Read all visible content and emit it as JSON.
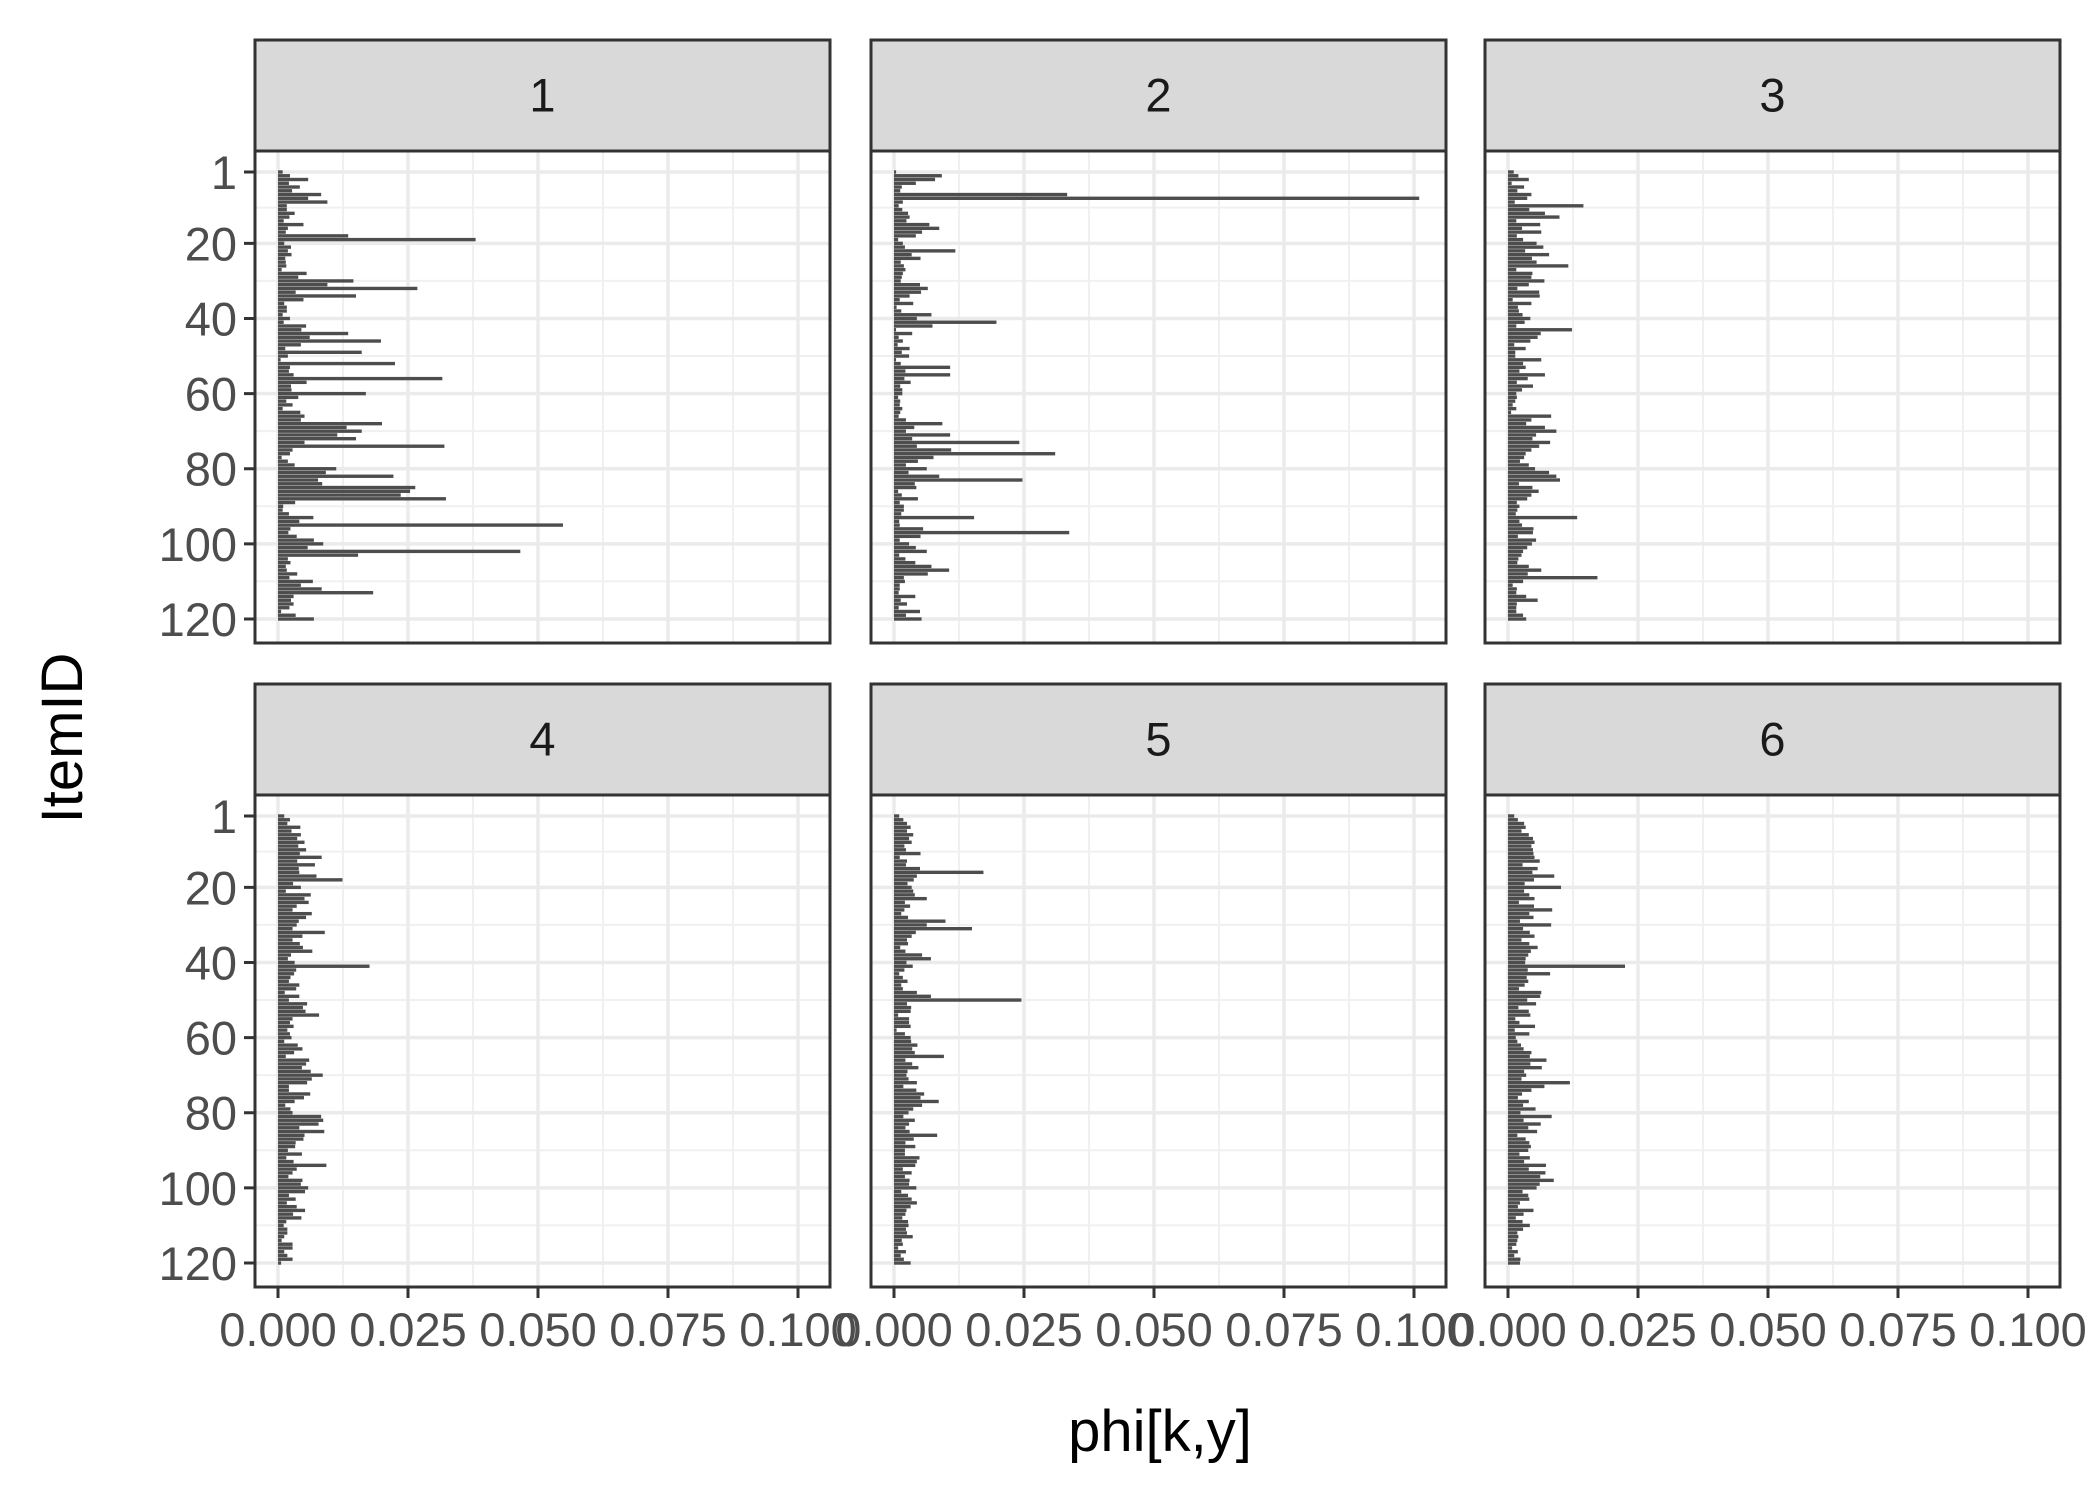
{
  "chart_data": {
    "type": "bar",
    "orientation": "horizontal",
    "facet_grid": "2 rows x 3 columns",
    "xlabel": "phi[k,y]",
    "ylabel": "ItemID",
    "xlim": [
      0,
      0.1
    ],
    "ylim": [
      1,
      120
    ],
    "x_ticks": [
      "0.000",
      "0.025",
      "0.050",
      "0.075",
      "0.100"
    ],
    "x_tick_values": [
      0,
      0.025,
      0.05,
      0.075,
      0.1
    ],
    "y_ticks": [
      "1",
      "20",
      "40",
      "60",
      "80",
      "100",
      "120"
    ],
    "y_tick_values": [
      1,
      20,
      40,
      60,
      80,
      100,
      120
    ],
    "grid": true,
    "bar_color": "#4d4d4d",
    "panels": [
      {
        "label": "1",
        "values": [
          0.0009,
          0.0023,
          0.0058,
          0.0021,
          0.0042,
          0.0027,
          0.0083,
          0.0058,
          0.0095,
          0.0017,
          0.0017,
          0.0032,
          0.0022,
          0.0011,
          0.0049,
          0.0019,
          0.0015,
          0.0135,
          0.038,
          0.0012,
          0.0025,
          0.0019,
          0.0026,
          0.0014,
          0.0015,
          0.0016,
          0.0007,
          0.0055,
          0.0039,
          0.0145,
          0.0095,
          0.0268,
          0.0034,
          0.015,
          0.0049,
          0.0012,
          0.0017,
          0.0017,
          0.0009,
          0.0023,
          0.0011,
          0.0054,
          0.0045,
          0.0135,
          0.0061,
          0.0198,
          0.0044,
          0.0014,
          0.0161,
          0.0019,
          0.0005,
          0.0225,
          0.0023,
          0.0021,
          0.003,
          0.0316,
          0.0055,
          0.0025,
          0.0026,
          0.0169,
          0.0039,
          0.0016,
          0.0028,
          0.0009,
          0.0043,
          0.0051,
          0.0044,
          0.02,
          0.0132,
          0.0161,
          0.0114,
          0.015,
          0.0051,
          0.032,
          0.0028,
          0.0023,
          0.0007,
          0.0019,
          0.0032,
          0.0112,
          0.0092,
          0.0222,
          0.0077,
          0.0085,
          0.0264,
          0.0254,
          0.0236,
          0.0323,
          0.0033,
          0.001,
          0.0009,
          0.0021,
          0.0068,
          0.0041,
          0.0548,
          0.0024,
          0.002,
          0.0036,
          0.0069,
          0.0087,
          0.0057,
          0.0466,
          0.0154,
          0.0019,
          0.0024,
          0.0015,
          0.0017,
          0.0037,
          0.0022,
          0.0067,
          0.0044,
          0.0084,
          0.0183,
          0.003,
          0.0025,
          0.003,
          0.0022,
          0.0006,
          0.0034,
          0.0069
        ]
      },
      {
        "label": "2",
        "values": [
          0.0004,
          0.0092,
          0.0079,
          0.0042,
          0.0015,
          0.0012,
          0.0333,
          0.101,
          0.0017,
          0.0009,
          0.0016,
          0.0027,
          0.003,
          0.0024,
          0.0068,
          0.0087,
          0.0054,
          0.0042,
          0.0008,
          0.0017,
          0.0021,
          0.0118,
          0.0034,
          0.0051,
          0.0013,
          0.0019,
          0.0022,
          0.0017,
          0.0015,
          0.0013,
          0.005,
          0.0065,
          0.0052,
          0.003,
          0.0011,
          0.0037,
          0.0005,
          0.0014,
          0.0072,
          0.0044,
          0.0197,
          0.0074,
          0.0004,
          0.0035,
          0.0009,
          0.0017,
          0.0007,
          0.003,
          0.0015,
          0.0029,
          0.0004,
          0.0013,
          0.0108,
          0.0022,
          0.0108,
          0.002,
          0.0032,
          0.0012,
          0.0016,
          0.0016,
          0.0008,
          0.0012,
          0.0011,
          0.0016,
          0.0012,
          0.0009,
          0.0023,
          0.0093,
          0.0039,
          0.0023,
          0.0108,
          0.0035,
          0.0241,
          0.0044,
          0.011,
          0.031,
          0.0076,
          0.0046,
          0.0023,
          0.0063,
          0.0028,
          0.0087,
          0.0247,
          0.004,
          0.0043,
          0.0008,
          0.0015,
          0.0046,
          0.0011,
          0.0019,
          0.0019,
          0.0014,
          0.0154,
          0.001,
          0.0011,
          0.0056,
          0.0337,
          0.0051,
          0.0011,
          0.0029,
          0.0042,
          0.0063,
          0.001,
          0.0022,
          0.0041,
          0.0072,
          0.0106,
          0.0065,
          0.0019,
          0.0021,
          0.0011,
          0.0011,
          0.0009,
          0.0041,
          0.0013,
          0.0025,
          0.0009,
          0.005,
          0.0023,
          0.0053
        ]
      },
      {
        "label": "3",
        "values": [
          0.0011,
          0.002,
          0.004,
          0.0007,
          0.0031,
          0.0018,
          0.0045,
          0.0037,
          0.0013,
          0.0145,
          0.0041,
          0.0071,
          0.0099,
          0.0016,
          0.0062,
          0.0027,
          0.0064,
          0.0017,
          0.0029,
          0.0055,
          0.0068,
          0.0033,
          0.0079,
          0.0046,
          0.0055,
          0.0116,
          0.0016,
          0.0047,
          0.0045,
          0.007,
          0.004,
          0.0018,
          0.006,
          0.0061,
          0.0009,
          0.0045,
          0.0019,
          0.0021,
          0.0028,
          0.0043,
          0.0032,
          0.0016,
          0.0123,
          0.0063,
          0.0057,
          0.0043,
          0.0012,
          0.0034,
          0.0014,
          0.0014,
          0.0064,
          0.0029,
          0.0034,
          0.0022,
          0.0071,
          0.0038,
          0.0017,
          0.0048,
          0.0027,
          0.0016,
          0.0017,
          0.0014,
          0.0009,
          0.0016,
          0.0006,
          0.0083,
          0.0045,
          0.0035,
          0.0071,
          0.0093,
          0.0054,
          0.0047,
          0.0081,
          0.006,
          0.0045,
          0.0034,
          0.0031,
          0.0023,
          0.004,
          0.0052,
          0.0079,
          0.0093,
          0.01,
          0.0021,
          0.0047,
          0.0059,
          0.0045,
          0.0037,
          0.0017,
          0.0022,
          0.0018,
          0.0015,
          0.0133,
          0.0022,
          0.0027,
          0.0049,
          0.0048,
          0.0019,
          0.0054,
          0.0046,
          0.0037,
          0.0029,
          0.0026,
          0.002,
          0.0018,
          0.004,
          0.0064,
          0.0038,
          0.0172,
          0.0029,
          0.0009,
          0.0017,
          0.0016,
          0.0035,
          0.0057,
          0.0017,
          0.0016,
          0.0016,
          0.0029,
          0.0035
        ]
      },
      {
        "label": "4",
        "values": [
          0.0012,
          0.0023,
          0.0018,
          0.0043,
          0.0026,
          0.0044,
          0.0037,
          0.0051,
          0.0039,
          0.0054,
          0.0042,
          0.0084,
          0.0037,
          0.0071,
          0.004,
          0.0041,
          0.0074,
          0.0124,
          0.0029,
          0.0044,
          0.0015,
          0.0063,
          0.0051,
          0.0059,
          0.0036,
          0.0028,
          0.0065,
          0.0054,
          0.004,
          0.0036,
          0.0028,
          0.009,
          0.0047,
          0.0028,
          0.0042,
          0.0048,
          0.0066,
          0.0025,
          0.0019,
          0.0032,
          0.0176,
          0.0035,
          0.0031,
          0.0024,
          0.0021,
          0.0041,
          0.0035,
          0.0013,
          0.0041,
          0.0021,
          0.0056,
          0.0048,
          0.0053,
          0.0079,
          0.0028,
          0.0023,
          0.003,
          0.0018,
          0.0023,
          0.0026,
          0.0012,
          0.0038,
          0.0047,
          0.0031,
          0.0015,
          0.006,
          0.0054,
          0.0046,
          0.0063,
          0.0086,
          0.0065,
          0.0056,
          0.0021,
          0.0021,
          0.0062,
          0.005,
          0.0032,
          0.0014,
          0.0024,
          0.0028,
          0.0083,
          0.0087,
          0.0078,
          0.0041,
          0.0089,
          0.0051,
          0.0049,
          0.0034,
          0.0033,
          0.0019,
          0.0046,
          0.0016,
          0.003,
          0.0093,
          0.0036,
          0.0028,
          0.002,
          0.0047,
          0.0044,
          0.0058,
          0.0052,
          0.0021,
          0.0034,
          0.0017,
          0.0036,
          0.0052,
          0.0029,
          0.0045,
          0.0016,
          0.0011,
          0.0018,
          0.0018,
          0.0012,
          0.0007,
          0.0028,
          0.0028,
          0.0012,
          0.0018,
          0.0028,
          0.0006
        ]
      },
      {
        "label": "5",
        "values": [
          0.001,
          0.0018,
          0.0025,
          0.0032,
          0.0025,
          0.0037,
          0.0029,
          0.0034,
          0.002,
          0.0023,
          0.0051,
          0.0011,
          0.0025,
          0.0023,
          0.005,
          0.0172,
          0.0044,
          0.0038,
          0.0026,
          0.0034,
          0.0037,
          0.004,
          0.0063,
          0.0021,
          0.0031,
          0.002,
          0.0014,
          0.0027,
          0.0099,
          0.0063,
          0.015,
          0.0042,
          0.0034,
          0.0025,
          0.0027,
          0.0012,
          0.0022,
          0.0054,
          0.0071,
          0.0024,
          0.0036,
          0.002,
          0.001,
          0.0017,
          0.0026,
          0.0014,
          0.0017,
          0.0044,
          0.0071,
          0.0245,
          0.0025,
          0.0033,
          0.0032,
          0.0008,
          0.0029,
          0.0029,
          0.0032,
          0.0005,
          0.0021,
          0.0032,
          0.0033,
          0.0045,
          0.0035,
          0.004,
          0.0096,
          0.0022,
          0.0035,
          0.0047,
          0.0026,
          0.0024,
          0.0028,
          0.0044,
          0.0018,
          0.0043,
          0.0058,
          0.0051,
          0.0086,
          0.0054,
          0.0037,
          0.0028,
          0.0018,
          0.004,
          0.0029,
          0.0022,
          0.003,
          0.0083,
          0.0038,
          0.0022,
          0.0041,
          0.0021,
          0.0021,
          0.0049,
          0.0044,
          0.0041,
          0.0017,
          0.0034,
          0.0021,
          0.003,
          0.0029,
          0.0043,
          0.0014,
          0.0027,
          0.0034,
          0.0044,
          0.0032,
          0.0024,
          0.0022,
          0.0016,
          0.0027,
          0.0028,
          0.0023,
          0.0025,
          0.0036,
          0.0015,
          0.0017,
          0.0008,
          0.0023,
          0.0013,
          0.0019,
          0.0032
        ]
      },
      {
        "label": "6",
        "values": [
          0.0012,
          0.0019,
          0.0031,
          0.0034,
          0.0026,
          0.004,
          0.0048,
          0.0051,
          0.0045,
          0.0048,
          0.0049,
          0.0051,
          0.0061,
          0.0028,
          0.0057,
          0.0047,
          0.0089,
          0.005,
          0.0032,
          0.0102,
          0.0031,
          0.0041,
          0.0051,
          0.0021,
          0.005,
          0.0085,
          0.0041,
          0.0049,
          0.0023,
          0.0083,
          0.0029,
          0.0042,
          0.0051,
          0.0026,
          0.0041,
          0.0057,
          0.0044,
          0.0039,
          0.0034,
          0.0033,
          0.0225,
          0.0038,
          0.0081,
          0.0036,
          0.0039,
          0.0032,
          0.0021,
          0.0064,
          0.0062,
          0.0037,
          0.0054,
          0.002,
          0.004,
          0.0043,
          0.0014,
          0.0022,
          0.0052,
          0.0013,
          0.0041,
          0.0015,
          0.0018,
          0.0025,
          0.003,
          0.0045,
          0.0042,
          0.0074,
          0.0043,
          0.0065,
          0.0031,
          0.0035,
          0.0026,
          0.0119,
          0.007,
          0.0045,
          0.0027,
          0.0019,
          0.004,
          0.0029,
          0.0053,
          0.0024,
          0.0084,
          0.003,
          0.0063,
          0.0039,
          0.0056,
          0.0018,
          0.0034,
          0.0041,
          0.0044,
          0.0039,
          0.0022,
          0.0042,
          0.0031,
          0.0073,
          0.004,
          0.0072,
          0.0062,
          0.0088,
          0.0061,
          0.0055,
          0.0028,
          0.0039,
          0.0041,
          0.0023,
          0.0019,
          0.0049,
          0.003,
          0.0015,
          0.0028,
          0.0042,
          0.0029,
          0.0018,
          0.002,
          0.0018,
          0.0016,
          0.0008,
          0.0019,
          0.0012,
          0.0024,
          0.0023
        ]
      }
    ]
  }
}
